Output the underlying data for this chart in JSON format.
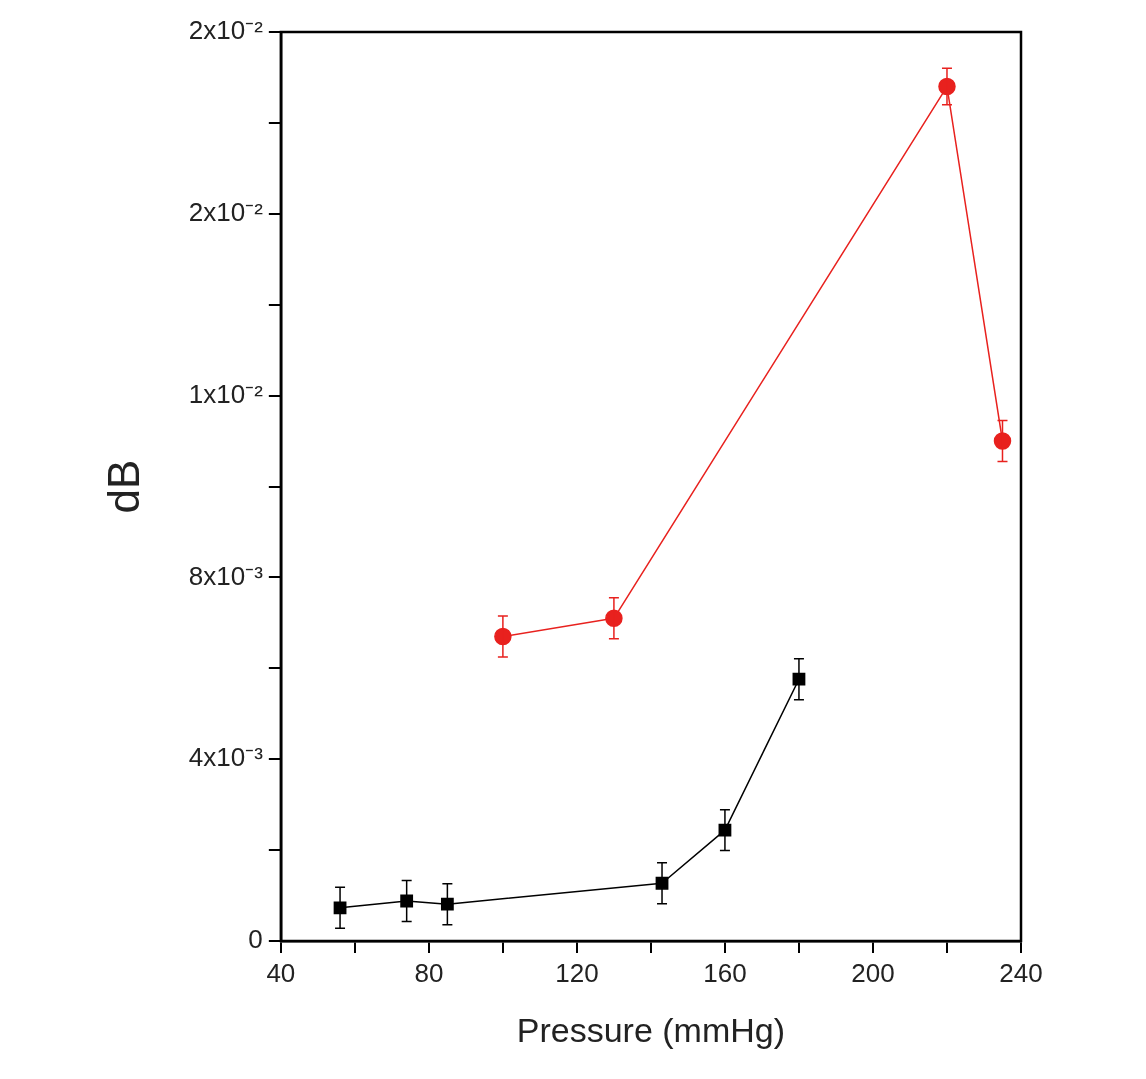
{
  "chart_data": {
    "type": "line",
    "xlabel": "Pressure (mmHg)",
    "ylabel": "dB",
    "xlim": [
      40,
      240
    ],
    "xticks": [
      40,
      {
        "value": 60,
        "label": null
      },
      80,
      {
        "value": 100,
        "label": null
      },
      120,
      {
        "value": 140,
        "label": null
      },
      160,
      {
        "value": 180,
        "label": null
      },
      200,
      {
        "value": 220,
        "label": null
      },
      240
    ],
    "ylim": [
      0,
      0.02
    ],
    "yticks": [
      0,
      {
        "value": 0.002,
        "label": null
      },
      {
        "value": 0.004,
        "label": "4x10⁻³"
      },
      {
        "value": 0.006,
        "label": null
      },
      {
        "value": 0.008,
        "label": "8x10⁻³"
      },
      {
        "value": 0.01,
        "label": null
      },
      {
        "value": 0.012,
        "label": "1x10⁻²"
      },
      {
        "value": 0.014,
        "label": null
      },
      {
        "value": 0.016,
        "label": "2x10⁻²"
      },
      {
        "value": 0.018,
        "label": null
      },
      {
        "value": 0.02,
        "label": "2x10⁻²"
      }
    ],
    "grid": false,
    "legend": false,
    "line_style": "solid",
    "series": [
      {
        "color": "#000000",
        "marker": "square",
        "x": [
          56,
          74,
          85,
          143,
          160,
          180
        ],
        "values": [
          0.00073,
          0.00088,
          0.00081,
          0.00127,
          0.00244,
          0.00576
        ],
        "errors": [
          0.00045,
          0.00045,
          0.00045,
          0.00045,
          0.00045,
          0.00045
        ]
      },
      {
        "color": "#e8211e",
        "marker": "circle",
        "x": [
          100,
          130,
          220,
          235
        ],
        "values": [
          0.0067,
          0.0071,
          0.0188,
          0.011
        ],
        "errors": [
          0.00045,
          0.00045,
          0.0004,
          0.00045
        ]
      }
    ]
  }
}
